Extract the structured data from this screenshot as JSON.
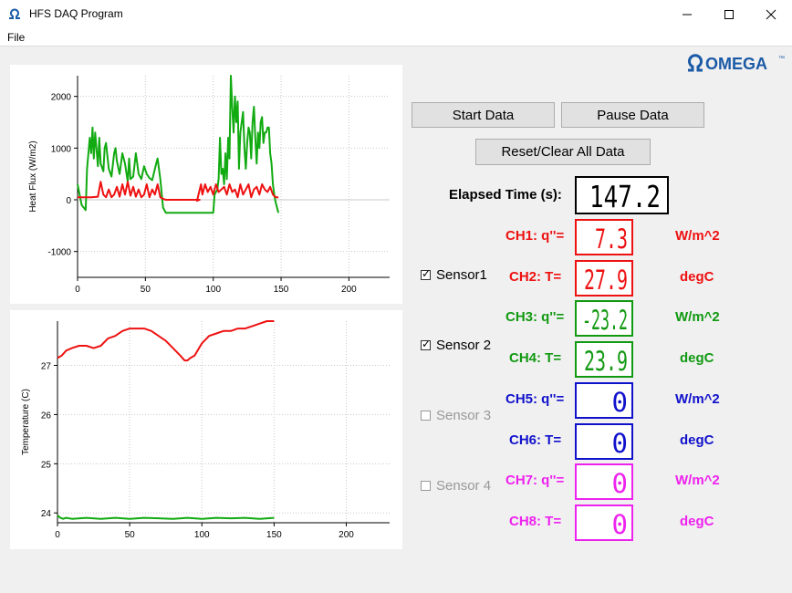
{
  "window": {
    "title": "HFS DAQ Program",
    "menu_file": "File"
  },
  "logo": {
    "text": "OMEGA",
    "tm": "™"
  },
  "buttons": {
    "start": "Start Data",
    "pause": "Pause Data",
    "reset": "Reset/Clear All Data"
  },
  "elapsed": {
    "label": "Elapsed Time (s):",
    "value": "147.2"
  },
  "sensors": [
    {
      "label": "Sensor1",
      "checked": true
    },
    {
      "label": "Sensor 2",
      "checked": true
    },
    {
      "label": "Sensor 3",
      "checked": false
    },
    {
      "label": "Sensor 4",
      "checked": false
    }
  ],
  "channels": [
    {
      "label": "CH1: q''=",
      "value": "7.3",
      "unit": "W/m^2",
      "color": "#ee1111"
    },
    {
      "label": "CH2: T=",
      "value": "27.9",
      "unit": "degC",
      "color": "#ee1111"
    },
    {
      "label": "CH3: q''=",
      "value": "-23.2",
      "unit": "W/m^2",
      "color": "#119911"
    },
    {
      "label": "CH4: T=",
      "value": "23.9",
      "unit": "degC",
      "color": "#119911"
    },
    {
      "label": "CH5: q''=",
      "value": "0",
      "unit": "W/m^2",
      "color": "#1111cc"
    },
    {
      "label": "CH6: T=",
      "value": "0",
      "unit": "degC",
      "color": "#1111cc"
    },
    {
      "label": "CH7: q''=",
      "value": "0",
      "unit": "W/m^2",
      "color": "#ee22ee"
    },
    {
      "label": "CH8: T=",
      "value": "0",
      "unit": "degC",
      "color": "#ee22ee"
    }
  ],
  "chart_data": [
    {
      "type": "line",
      "ylabel": "Heat Flux (W/m2)",
      "xlim": [
        0,
        230
      ],
      "ylim": [
        -1500,
        2400
      ],
      "xticks": [
        0,
        50,
        100,
        150,
        200
      ],
      "yticks": [
        -1000,
        0,
        1000,
        2000
      ],
      "grid": true,
      "series": [
        {
          "color": "#11aa11",
          "x": [
            0,
            3,
            6,
            7,
            9,
            10,
            11,
            12,
            13,
            15,
            16,
            17,
            19,
            20,
            21,
            23,
            25,
            27,
            28,
            29,
            31,
            33,
            35,
            37,
            38,
            39,
            41,
            43,
            45,
            47,
            49,
            51,
            53,
            55,
            57,
            58,
            59,
            61,
            63,
            65,
            80,
            90,
            100,
            101,
            103,
            104,
            105,
            106,
            107,
            108,
            109,
            110,
            111,
            112,
            113,
            114,
            115,
            116,
            117,
            118,
            119,
            120,
            121,
            122,
            123,
            124,
            125,
            126,
            127,
            128,
            129,
            130,
            131,
            132,
            133,
            134,
            135,
            136,
            137,
            138,
            139,
            140,
            141,
            142,
            143,
            144,
            145,
            146,
            148
          ],
          "y": [
            300,
            -100,
            -200,
            600,
            1200,
            900,
            1400,
            800,
            1300,
            650,
            1200,
            700,
            550,
            1000,
            1100,
            600,
            450,
            900,
            1000,
            750,
            500,
            900,
            700,
            350,
            800,
            400,
            450,
            900,
            500,
            400,
            650,
            500,
            420,
            380,
            600,
            700,
            800,
            400,
            -150,
            -250,
            -250,
            -250,
            -250,
            100,
            200,
            400,
            1200,
            500,
            600,
            300,
            900,
            400,
            1200,
            800,
            2400,
            1800,
            1300,
            2000,
            1500,
            1900,
            600,
            1300,
            1500,
            1700,
            1000,
            600,
            1100,
            1400,
            1300,
            800,
            1500,
            1800,
            1200,
            700,
            1300,
            1000,
            1500,
            1600,
            1100,
            1300,
            1300,
            1400,
            1400,
            900,
            700,
            300,
            100,
            -50,
            -250
          ]
        },
        {
          "color": "#ee1111",
          "x": [
            0,
            10,
            15,
            17,
            19,
            21,
            23,
            25,
            27,
            29,
            31,
            33,
            35,
            37,
            39,
            41,
            43,
            45,
            47,
            49,
            51,
            53,
            55,
            57,
            59,
            61,
            63,
            65,
            90,
            88,
            91,
            92,
            94,
            96,
            98,
            100,
            102,
            104,
            106,
            108,
            110,
            112,
            114,
            116,
            118,
            120,
            122,
            124,
            126,
            128,
            130,
            132,
            134,
            136,
            138,
            140,
            142,
            144,
            146,
            148
          ],
          "y": [
            50,
            50,
            60,
            350,
            100,
            50,
            200,
            50,
            100,
            250,
            60,
            300,
            100,
            350,
            80,
            250,
            60,
            200,
            50,
            100,
            300,
            50,
            200,
            100,
            300,
            50,
            20,
            0,
            0,
            -20,
            300,
            100,
            300,
            150,
            250,
            100,
            300,
            150,
            200,
            250,
            100,
            300,
            150,
            200,
            50,
            300,
            100,
            200,
            300,
            50,
            200,
            250,
            100,
            300,
            200,
            150,
            250,
            100,
            50,
            50
          ]
        }
      ]
    },
    {
      "type": "line",
      "ylabel": "Temperature (C)",
      "xlim": [
        0,
        230
      ],
      "ylim": [
        23.8,
        27.9
      ],
      "xticks": [
        0,
        50,
        100,
        150,
        200
      ],
      "yticks": [
        24,
        25,
        26,
        27
      ],
      "grid": true,
      "series": [
        {
          "color": "#ee1111",
          "x": [
            0,
            3,
            6,
            10,
            15,
            20,
            25,
            30,
            35,
            40,
            45,
            50,
            55,
            60,
            65,
            70,
            75,
            80,
            85,
            88,
            90,
            92,
            95,
            98,
            100,
            105,
            110,
            115,
            120,
            125,
            130,
            135,
            140,
            145,
            150
          ],
          "y": [
            27.15,
            27.2,
            27.3,
            27.35,
            27.4,
            27.4,
            27.35,
            27.4,
            27.55,
            27.6,
            27.7,
            27.75,
            27.75,
            27.75,
            27.7,
            27.6,
            27.5,
            27.35,
            27.2,
            27.1,
            27.1,
            27.15,
            27.2,
            27.35,
            27.45,
            27.6,
            27.65,
            27.7,
            27.7,
            27.75,
            27.75,
            27.8,
            27.85,
            27.9,
            27.9
          ]
        },
        {
          "color": "#11aa11",
          "x": [
            0,
            2,
            4,
            6,
            10,
            20,
            30,
            40,
            50,
            60,
            70,
            80,
            90,
            100,
            110,
            120,
            130,
            140,
            150
          ],
          "y": [
            23.95,
            23.9,
            23.88,
            23.9,
            23.88,
            23.9,
            23.88,
            23.9,
            23.88,
            23.9,
            23.89,
            23.88,
            23.9,
            23.88,
            23.9,
            23.89,
            23.9,
            23.88,
            23.9
          ]
        }
      ]
    }
  ]
}
